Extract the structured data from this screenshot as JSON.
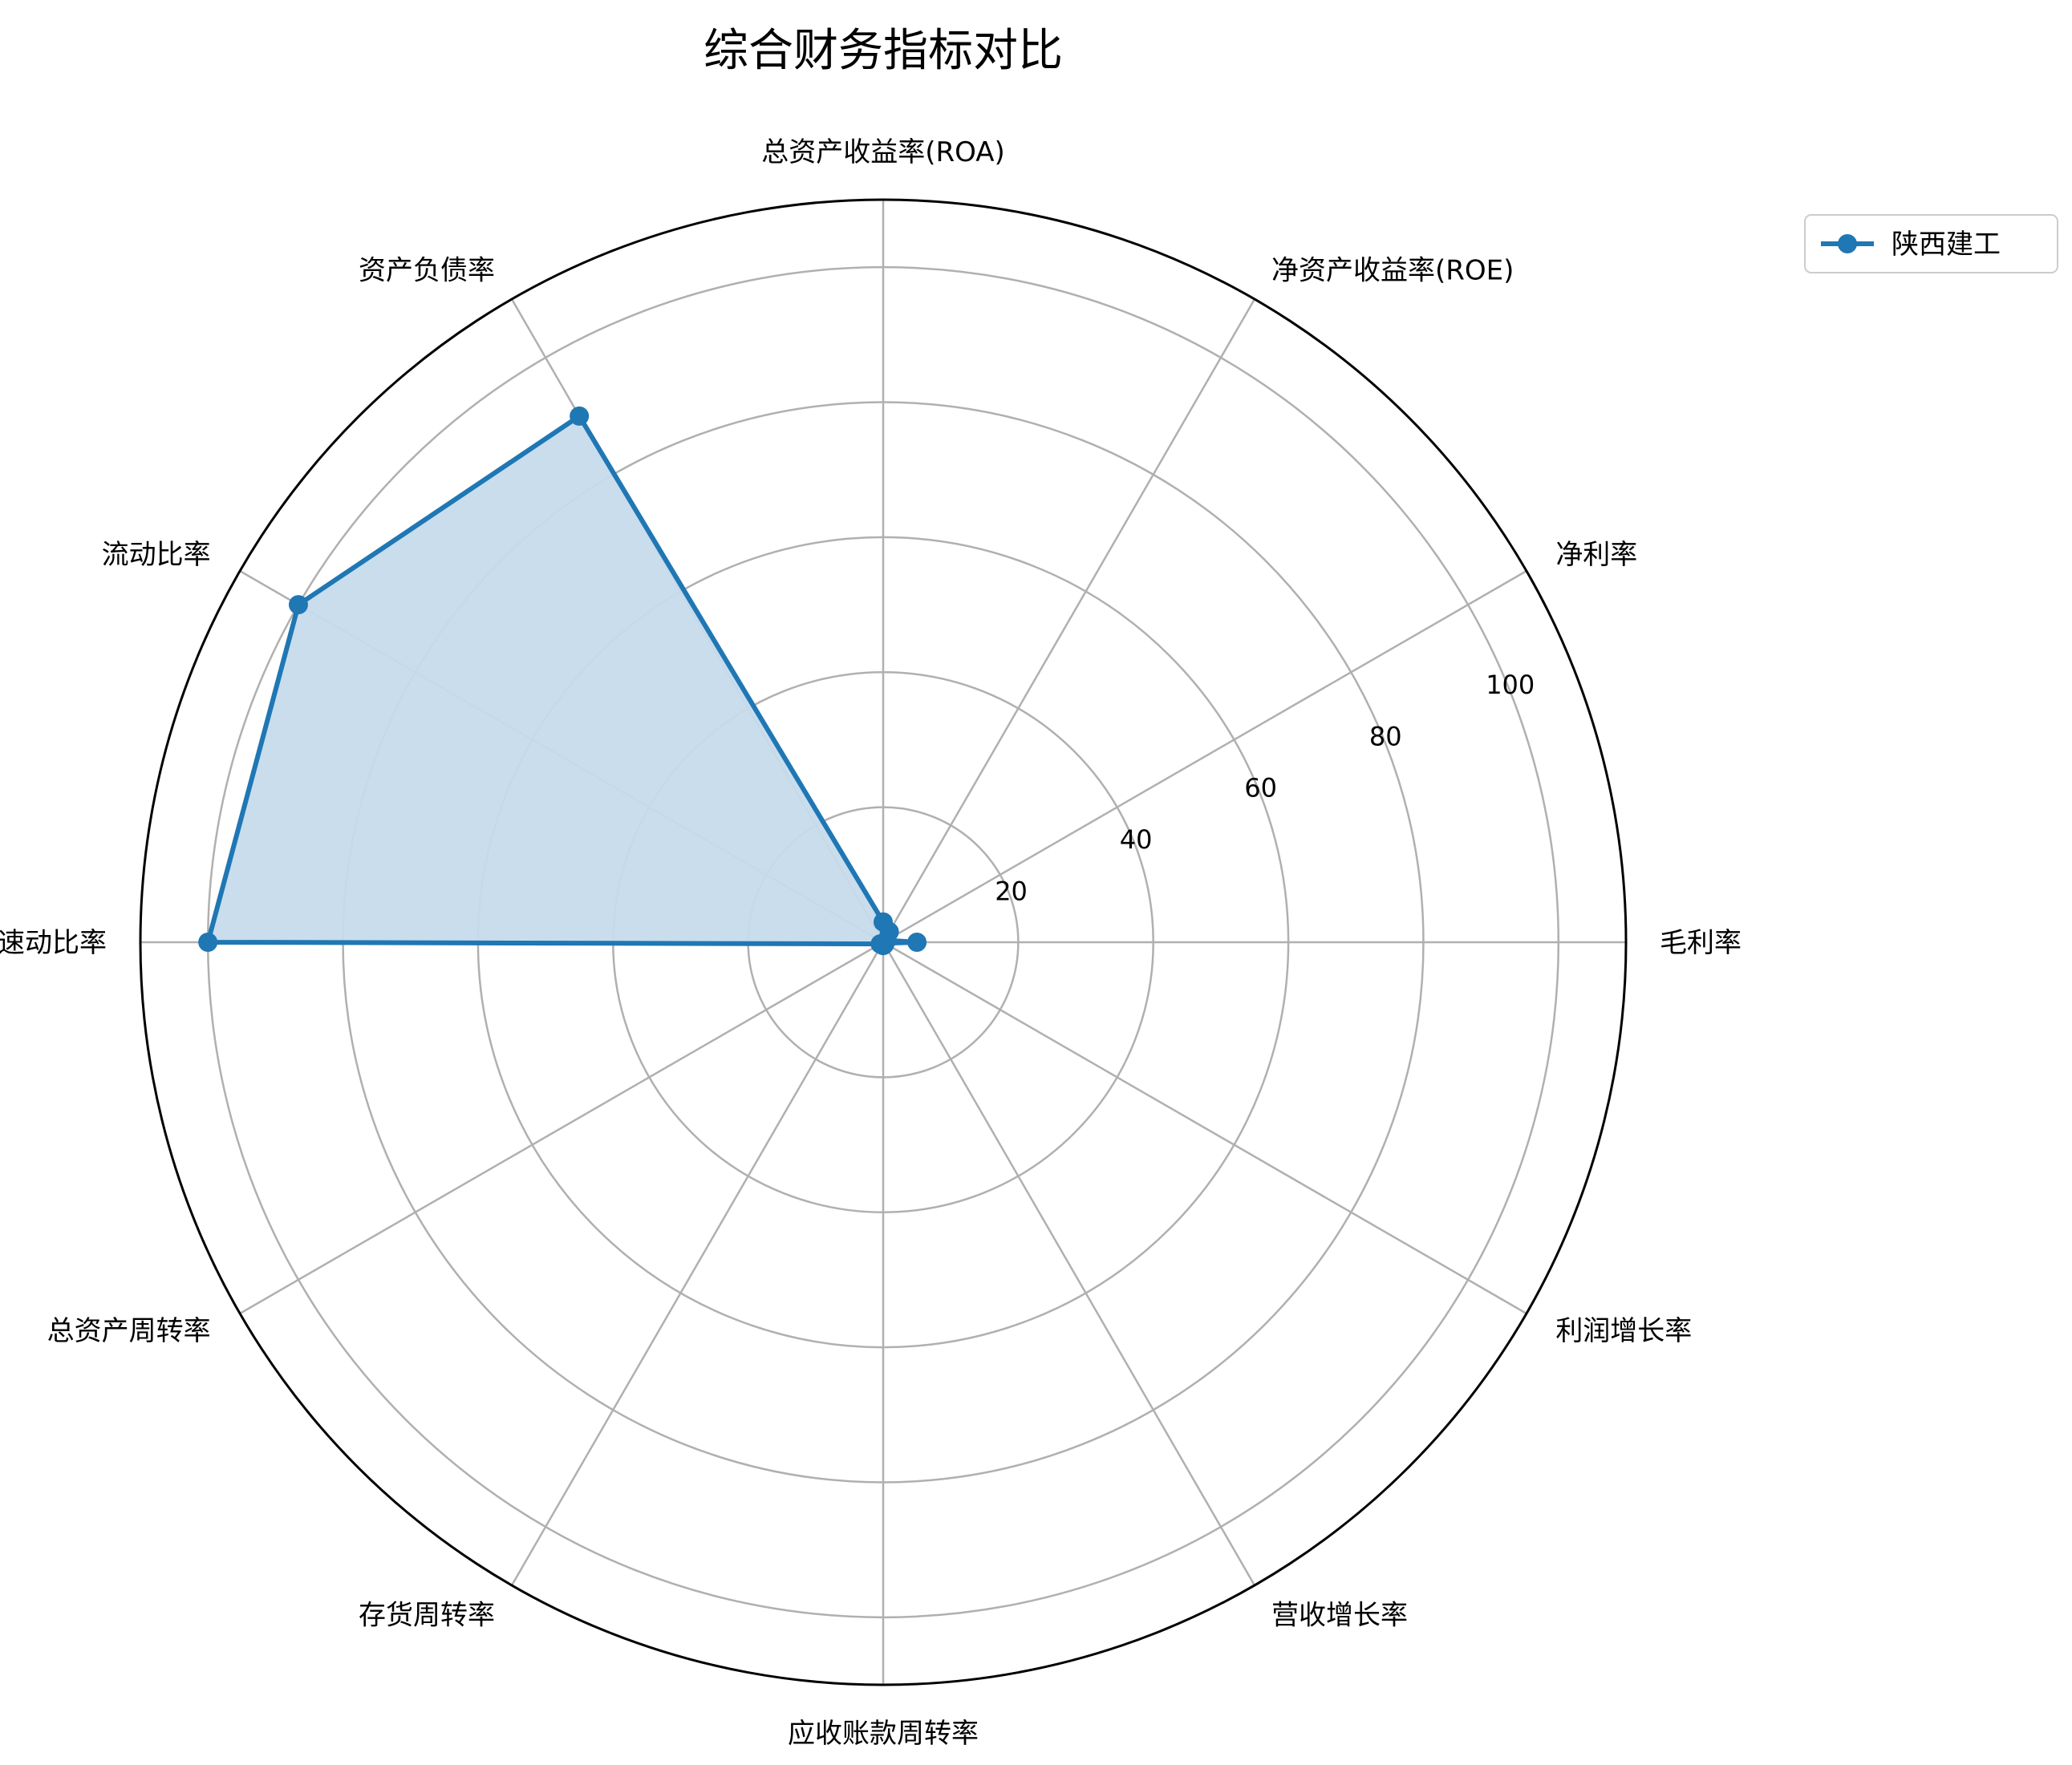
{
  "chart_data": {
    "type": "radar",
    "title": "综合财务指标对比",
    "categories": [
      "毛利率",
      "净利率",
      "净资产收益率(ROE)",
      "总资产收益率(ROA)",
      "资产负债率",
      "流动比率",
      "速动比率",
      "总资产周转率",
      "存货周转率",
      "应收账款周转率",
      "营收增长率",
      "利润增长率"
    ],
    "series": [
      {
        "name": "陕西建工",
        "values": [
          5,
          0.6,
          1.8,
          3,
          90,
          100,
          100,
          0.5,
          0.3,
          0.5,
          0.4,
          0.3
        ]
      }
    ],
    "rlim": [
      0,
      110
    ],
    "rticks": [
      20,
      40,
      60,
      80,
      100
    ],
    "rtick_labels": [
      "20",
      "40",
      "60",
      "80",
      "100"
    ],
    "grid": true,
    "legend_position": "upper-right-outside",
    "colors": {
      "series": "#1f77b4",
      "fill": "#c6dbec",
      "grid": "#b0b0b0",
      "frame": "#000000"
    }
  }
}
